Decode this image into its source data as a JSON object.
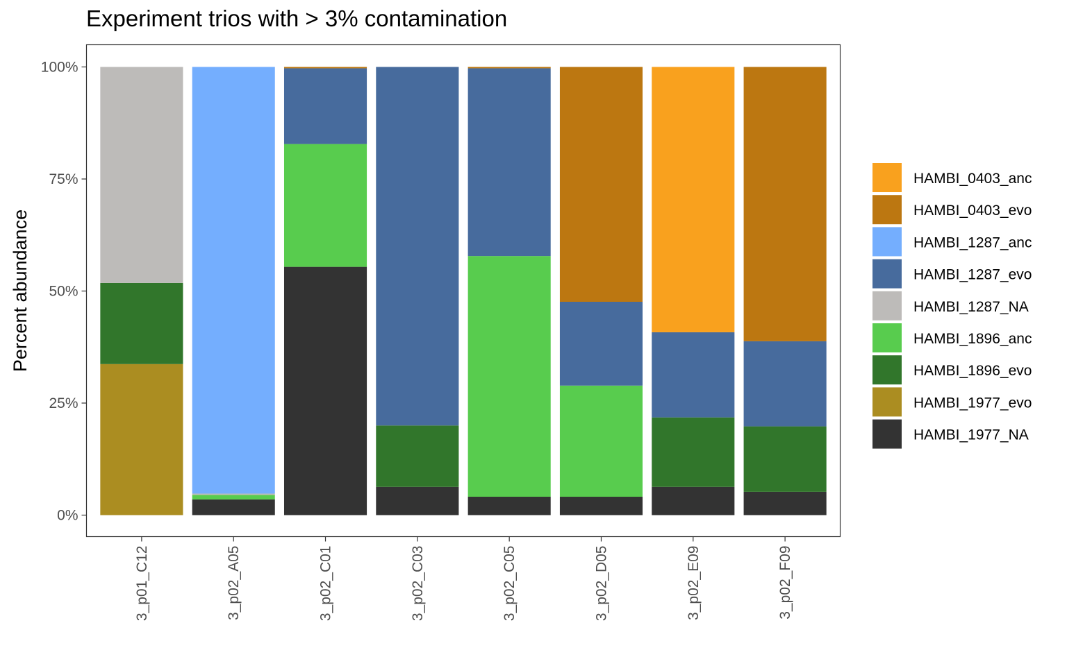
{
  "chart_data": {
    "type": "bar",
    "stacked": true,
    "title": "Experiment trios with > 3% contamination",
    "xlabel": "",
    "ylabel": "Percent abundance",
    "ylim": [
      0,
      100
    ],
    "y_ticks": [
      "0%",
      "25%",
      "50%",
      "75%",
      "100%"
    ],
    "y_tick_values": [
      0,
      25,
      50,
      75,
      100
    ],
    "grid": false,
    "legend_position": "right",
    "categories": [
      "3_p01_C12",
      "3_p02_A05",
      "3_p02_C01",
      "3_p02_C03",
      "3_p02_C05",
      "3_p02_D05",
      "3_p02_E09",
      "3_p02_F09"
    ],
    "series": [
      {
        "name": "HAMBI_0403_anc",
        "color": "#F9A11E",
        "values": [
          0,
          0,
          0,
          0,
          0,
          0,
          59.2,
          0
        ]
      },
      {
        "name": "HAMBI_0403_evo",
        "color": "#BC7711",
        "values": [
          0,
          0,
          0.3,
          0,
          0.3,
          52.4,
          0,
          61.2
        ]
      },
      {
        "name": "HAMBI_1287_anc",
        "color": "#74AEFE",
        "values": [
          0,
          95.2,
          0,
          0,
          0,
          0,
          0,
          0
        ]
      },
      {
        "name": "HAMBI_1287_evo",
        "color": "#476B9D",
        "values": [
          0,
          0,
          16.9,
          80.0,
          41.9,
          18.7,
          19.0,
          19.0
        ]
      },
      {
        "name": "HAMBI_1287_NA",
        "color": "#BDBBB9",
        "values": [
          48.2,
          0.3,
          0,
          0,
          0,
          0,
          0,
          0
        ]
      },
      {
        "name": "HAMBI_1896_anc",
        "color": "#58CC4E",
        "values": [
          0,
          1.0,
          27.4,
          0,
          53.7,
          24.8,
          0,
          0
        ]
      },
      {
        "name": "HAMBI_1896_evo",
        "color": "#31762B",
        "values": [
          18.1,
          0,
          0,
          13.7,
          0,
          0,
          15.5,
          14.6
        ]
      },
      {
        "name": "HAMBI_1977_evo",
        "color": "#AB8D21",
        "values": [
          33.7,
          0,
          0,
          0,
          0,
          0,
          0,
          0
        ]
      },
      {
        "name": "HAMBI_1977_NA",
        "color": "#333333",
        "values": [
          0,
          3.5,
          55.4,
          6.3,
          4.1,
          4.1,
          6.3,
          5.2
        ]
      }
    ]
  }
}
